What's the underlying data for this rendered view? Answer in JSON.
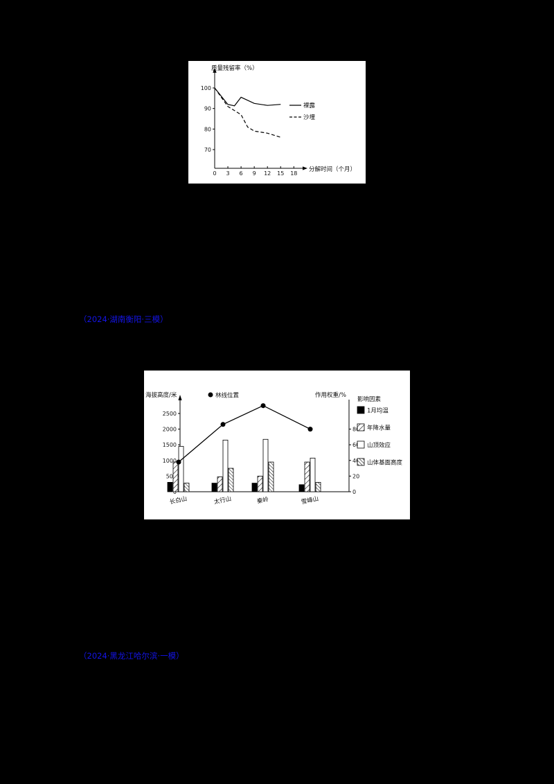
{
  "page": {
    "background_color": "#000000",
    "figure_background_color": "#ffffff",
    "link_color": "#1414e6"
  },
  "links": [
    {
      "text": "（2024·湖南衡阳·三模）"
    },
    {
      "text": "（2024·黑龙江哈尔滨·一模）"
    }
  ],
  "chart_data": [
    {
      "type": "line",
      "title": "",
      "ylabel": "质量残留率（%）",
      "xlabel": "分解时间（个月）",
      "x_ticks": [
        0,
        3,
        6,
        9,
        12,
        15,
        18
      ],
      "y_ticks": [
        100,
        90,
        80,
        70
      ],
      "ylim": [
        65,
        102
      ],
      "xlim": [
        0,
        18
      ],
      "grid": false,
      "legend_position": "right-inside",
      "series": [
        {
          "name": "裸露",
          "style": "solid",
          "points": [
            [
              0,
              100
            ],
            [
              3,
              92
            ],
            [
              4.5,
              91.3
            ],
            [
              6,
              95.5
            ],
            [
              9,
              92.5
            ],
            [
              12,
              91.5
            ],
            [
              15,
              92
            ]
          ]
        },
        {
          "name": "沙埋",
          "style": "dashed",
          "points": [
            [
              0,
              100
            ],
            [
              3,
              91
            ],
            [
              6,
              87
            ],
            [
              7.5,
              81
            ],
            [
              9,
              79
            ],
            [
              12,
              78
            ],
            [
              15,
              76
            ]
          ]
        }
      ]
    },
    {
      "type": "combo-bar-line",
      "left_axis_label": "海拔高度/米",
      "right_axis_label": "作用权重/%",
      "line_legend": "林线位置",
      "legend_title": "影响因素",
      "categories": [
        "长白山",
        "太行山",
        "秦岭",
        "雪峰山"
      ],
      "left_ticks": [
        0,
        500,
        1000,
        1500,
        2000,
        2500
      ],
      "right_ticks": [
        0,
        20,
        40,
        60,
        80
      ],
      "left_ylim": [
        0,
        2900
      ],
      "right_ylim": [
        0,
        110
      ],
      "line_series": {
        "name": "林线位置",
        "unit": "米",
        "values": [
          950,
          2150,
          2750,
          2000
        ]
      },
      "bar_series": [
        {
          "name": "1月均温",
          "pattern": "solid-black",
          "values": [
            12,
            11,
            11,
            9
          ]
        },
        {
          "name": "年降水量",
          "pattern": "diagonal-hatch",
          "values": [
            38,
            19,
            20,
            38
          ]
        },
        {
          "name": "山顶效应",
          "pattern": "white",
          "values": [
            58,
            66,
            67,
            43
          ]
        },
        {
          "name": "山体基面高度",
          "pattern": "dense-hatch",
          "values": [
            11,
            30,
            38,
            12
          ]
        }
      ]
    }
  ]
}
